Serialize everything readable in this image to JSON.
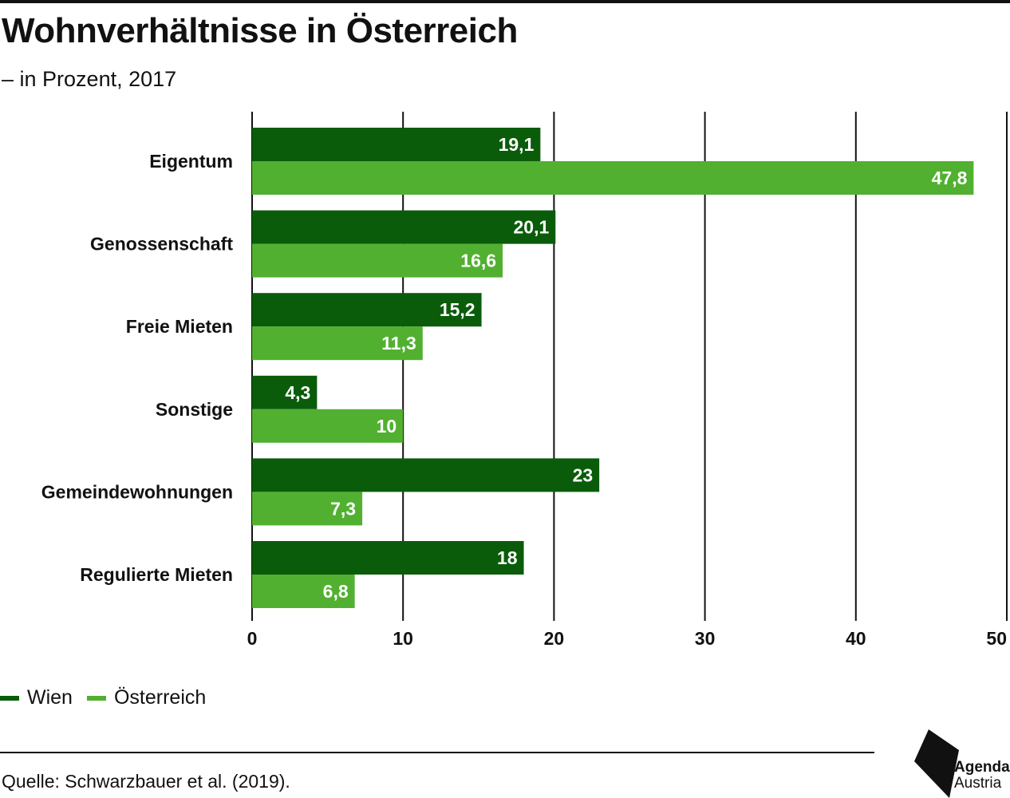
{
  "title": "Wohnverhältnisse in Österreich",
  "subtitle": "– in Prozent, 2017",
  "source": "Quelle: Schwarzbauer et al. (2019).",
  "logo": {
    "line1": "Agenda",
    "line2": "Austria"
  },
  "colors": {
    "wien": "#0a5c0a",
    "oesterreich": "#52b031",
    "grid": "#111111"
  },
  "chart_data": {
    "type": "bar",
    "orientation": "horizontal",
    "categories": [
      "Eigentum",
      "Genossenschaft",
      "Freie Mieten",
      "Sonstige",
      "Gemeindewohnungen",
      "Regulierte Mieten"
    ],
    "series": [
      {
        "name": "Wien",
        "values": [
          19.1,
          20.1,
          15.2,
          4.3,
          23,
          18
        ],
        "labels": [
          "19,1",
          "20,1",
          "15,2",
          "4,3",
          "23",
          "18"
        ]
      },
      {
        "name": "Österreich",
        "values": [
          47.8,
          16.6,
          11.3,
          10,
          7.3,
          6.8
        ],
        "labels": [
          "47,8",
          "16,6",
          "11,3",
          "10",
          "7,3",
          "6,8"
        ]
      }
    ],
    "xlim": [
      0,
      50
    ],
    "xticks": [
      0,
      10,
      20,
      30,
      40,
      50
    ],
    "tick_labels": [
      "0",
      "10",
      "20",
      "30",
      "40",
      "50"
    ],
    "grid": true,
    "legend_position": "bottom-left"
  }
}
